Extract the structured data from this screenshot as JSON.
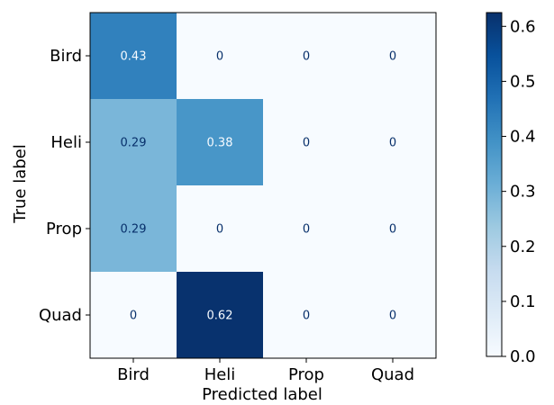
{
  "chart_data": {
    "type": "heatmap",
    "title": "",
    "xlabel": "Predicted label",
    "ylabel": "True label",
    "x_categories": [
      "Bird",
      "Heli",
      "Prop",
      "Quad"
    ],
    "y_categories": [
      "Bird",
      "Heli",
      "Prop",
      "Quad"
    ],
    "values": [
      [
        0.43,
        0,
        0,
        0
      ],
      [
        0.29,
        0.38,
        0,
        0
      ],
      [
        0.29,
        0,
        0,
        0
      ],
      [
        0,
        0.62,
        0,
        0
      ]
    ],
    "value_labels": [
      [
        "0.43",
        "0",
        "0",
        "0"
      ],
      [
        "0.29",
        "0.38",
        "0",
        "0"
      ],
      [
        "0.29",
        "0",
        "0",
        "0"
      ],
      [
        "0",
        "0.62",
        "0",
        "0"
      ]
    ],
    "colormap": "Blues",
    "vmin": 0,
    "vmax": 0.625,
    "colorbar": {
      "ticks": [
        0.0,
        0.1,
        0.2,
        0.3,
        0.4,
        0.5,
        0.6
      ],
      "tick_labels": [
        "0.0",
        "0.1",
        "0.2",
        "0.3",
        "0.4",
        "0.5",
        "0.6"
      ]
    },
    "text_colors": {
      "light_cells": "#08306b",
      "dark_cells": "#f7fbff"
    }
  }
}
